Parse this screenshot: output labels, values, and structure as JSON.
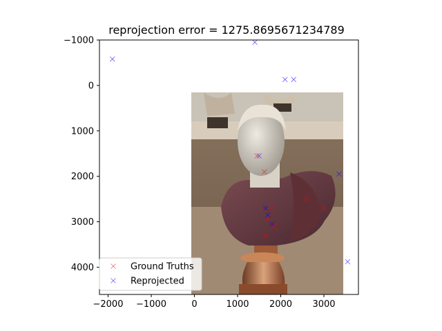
{
  "chart_data": {
    "type": "scatter",
    "title": "reprojection error = 1275.8695671234789",
    "xlabel": "",
    "ylabel": "",
    "xlim": [
      -2200,
      3800
    ],
    "ylim": [
      4600,
      -1000
    ],
    "y_inverted": true,
    "grid": false,
    "legend_placement": "lower-left",
    "x_ticks": [
      -2000,
      -1000,
      0,
      1000,
      2000,
      3000
    ],
    "x_tick_labels": [
      "−2000",
      "−1000",
      "0",
      "1000",
      "2000",
      "3000"
    ],
    "y_ticks": [
      -1000,
      0,
      1000,
      2000,
      3000,
      4000
    ],
    "y_tick_labels": [
      "−1000",
      "0",
      "1000",
      "2000",
      "3000",
      "4000"
    ],
    "background_image": {
      "description_icon": "photo-bust-statue",
      "extent_x": [
        0,
        3450
      ],
      "extent_y": [
        0,
        4600
      ]
    },
    "series": [
      {
        "name": "Ground Truths",
        "marker": "x",
        "color": "#ff0000",
        "points": [
          [
            1450,
            1550
          ],
          [
            1620,
            1900
          ],
          [
            1780,
            2700
          ],
          [
            1700,
            2950
          ],
          [
            1850,
            3100
          ],
          [
            2600,
            2500
          ],
          [
            3000,
            2700
          ],
          [
            1650,
            3300
          ]
        ]
      },
      {
        "name": "Reprojected",
        "marker": "x",
        "color": "#0000ff",
        "points": [
          [
            -1900,
            -580
          ],
          [
            1400,
            -950
          ],
          [
            2100,
            -130
          ],
          [
            2300,
            -130
          ],
          [
            1500,
            1550
          ],
          [
            1650,
            2700
          ],
          [
            3350,
            1950
          ],
          [
            3550,
            3880
          ],
          [
            1800,
            3050
          ],
          [
            1700,
            2850
          ]
        ]
      }
    ]
  }
}
